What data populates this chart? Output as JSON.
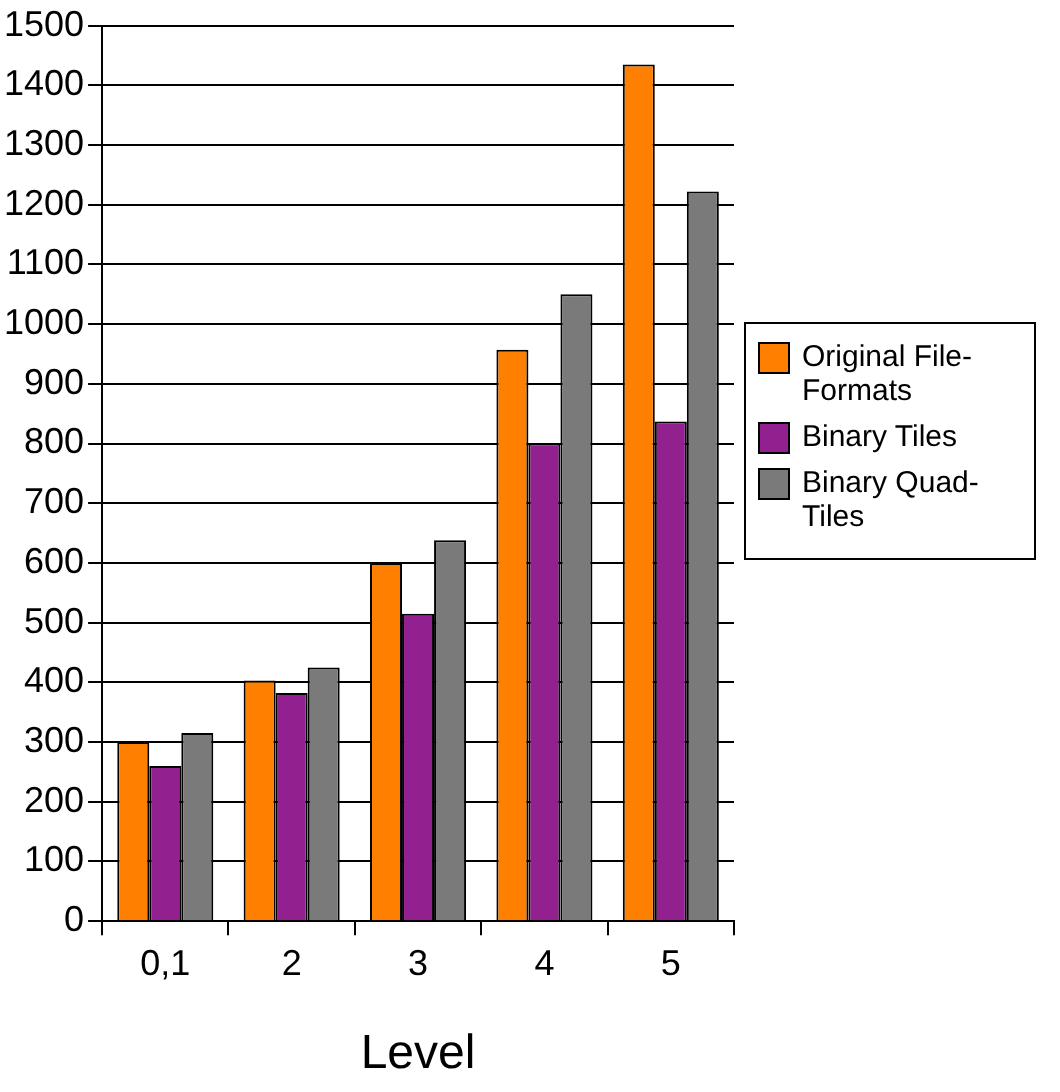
{
  "chart_data": {
    "type": "bar",
    "xlabel": "Level",
    "categories": [
      "0,1",
      "2",
      "3",
      "4",
      "5"
    ],
    "series": [
      {
        "name": "Original File-Formats",
        "color": "#ff8000",
        "values": [
          300,
          403,
          600,
          957,
          1435
        ]
      },
      {
        "name": "Binary Tiles",
        "color": "#92208f",
        "values": [
          260,
          382,
          515,
          800,
          837
        ]
      },
      {
        "name": "Binary Quad-Tiles",
        "color": "#7a7a7a",
        "values": [
          315,
          425,
          638,
          1050,
          1222
        ]
      }
    ],
    "ylim": [
      0,
      1500
    ],
    "yticks": [
      0,
      100,
      200,
      300,
      400,
      500,
      600,
      700,
      800,
      900,
      1000,
      1100,
      1200,
      1300,
      1400,
      1500
    ],
    "grid": "y",
    "legend": "right"
  }
}
